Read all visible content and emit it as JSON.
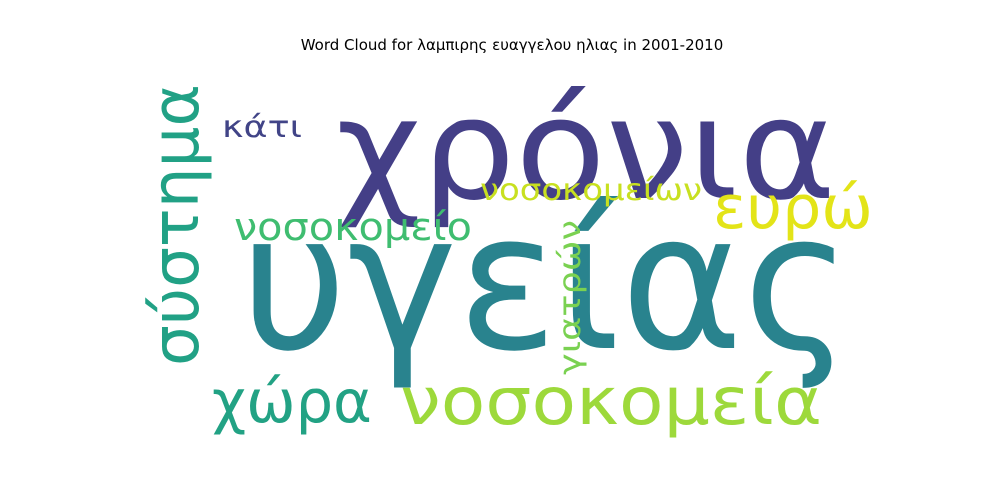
{
  "chart_data": {
    "type": "wordcloud",
    "title": "Word Cloud for λαμπιρης ευαγγελου ηλιας in 2001-2010",
    "words": [
      {
        "text": "υγείας",
        "color": "#29838e"
      },
      {
        "text": "χρόνια",
        "color": "#443f87"
      },
      {
        "text": "σύστημα",
        "color": "#21a185"
      },
      {
        "text": "νοσοκομεία",
        "color": "#9dd93b"
      },
      {
        "text": "ευρώ",
        "color": "#e3e418"
      },
      {
        "text": "χώρα",
        "color": "#22a284"
      },
      {
        "text": "νοσοκομείο",
        "color": "#3fbd70"
      },
      {
        "text": "νοσοκομείων",
        "color": "#c8e020"
      },
      {
        "text": "γιατρών",
        "color": "#7ad151"
      },
      {
        "text": "κάτι",
        "color": "#414487"
      }
    ]
  }
}
